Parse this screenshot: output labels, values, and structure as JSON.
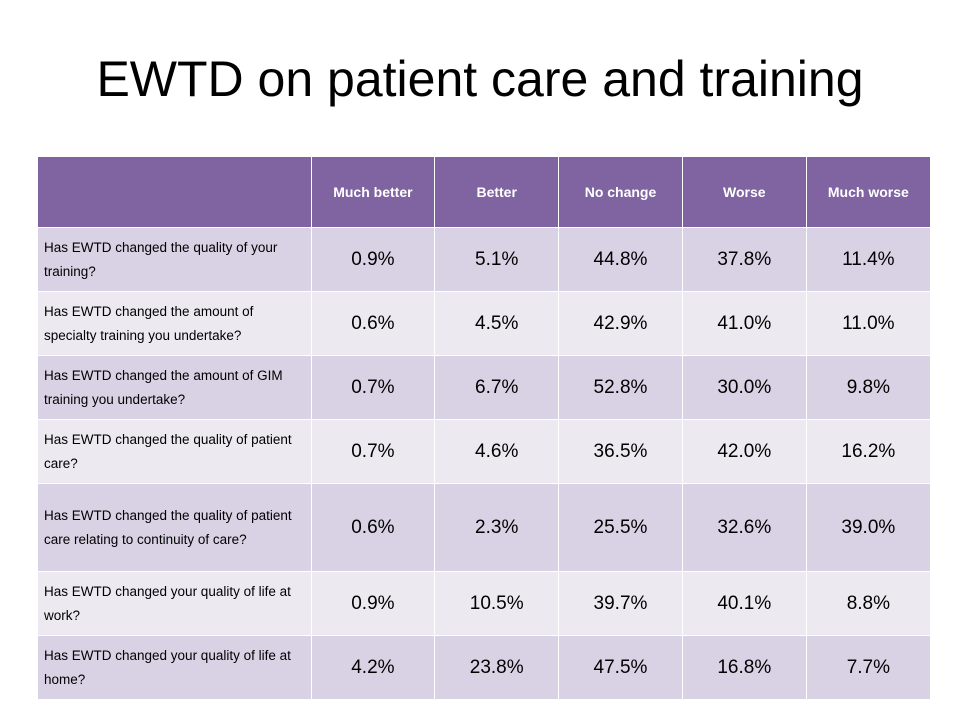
{
  "title": "EWTD on patient care and training",
  "table": {
    "headers": [
      "",
      "Much better",
      "Better",
      "No change",
      "Worse",
      "Much worse"
    ],
    "rows": [
      {
        "question": "Has EWTD changed the quality of your training?",
        "values": [
          "0.9%",
          "5.1%",
          "44.8%",
          "37.8%",
          "11.4%"
        ]
      },
      {
        "question": "Has EWTD changed the amount of specialty training you undertake?",
        "values": [
          "0.6%",
          "4.5%",
          "42.9%",
          "41.0%",
          "11.0%"
        ]
      },
      {
        "question": "Has EWTD changed the amount of GIM training you undertake?",
        "values": [
          "0.7%",
          "6.7%",
          "52.8%",
          "30.0%",
          "9.8%"
        ]
      },
      {
        "question": "Has EWTD changed the quality of patient care?",
        "values": [
          "0.7%",
          "4.6%",
          "36.5%",
          "42.0%",
          "16.2%"
        ]
      },
      {
        "question": "Has EWTD changed the quality of patient care relating to continuity of care?",
        "values": [
          "0.6%",
          "2.3%",
          "25.5%",
          "32.6%",
          "39.0%"
        ]
      },
      {
        "question": "Has EWTD changed your quality of life at work?",
        "values": [
          "0.9%",
          "10.5%",
          "39.7%",
          "40.1%",
          "8.8%"
        ]
      },
      {
        "question": "Has EWTD changed your quality of life at home?",
        "values": [
          "4.2%",
          "23.8%",
          "47.5%",
          "16.8%",
          "7.7%"
        ]
      }
    ]
  },
  "colors": {
    "header_bg": "#8064a2",
    "row_odd": "#d8d2e4",
    "row_even": "#ede9f1"
  }
}
